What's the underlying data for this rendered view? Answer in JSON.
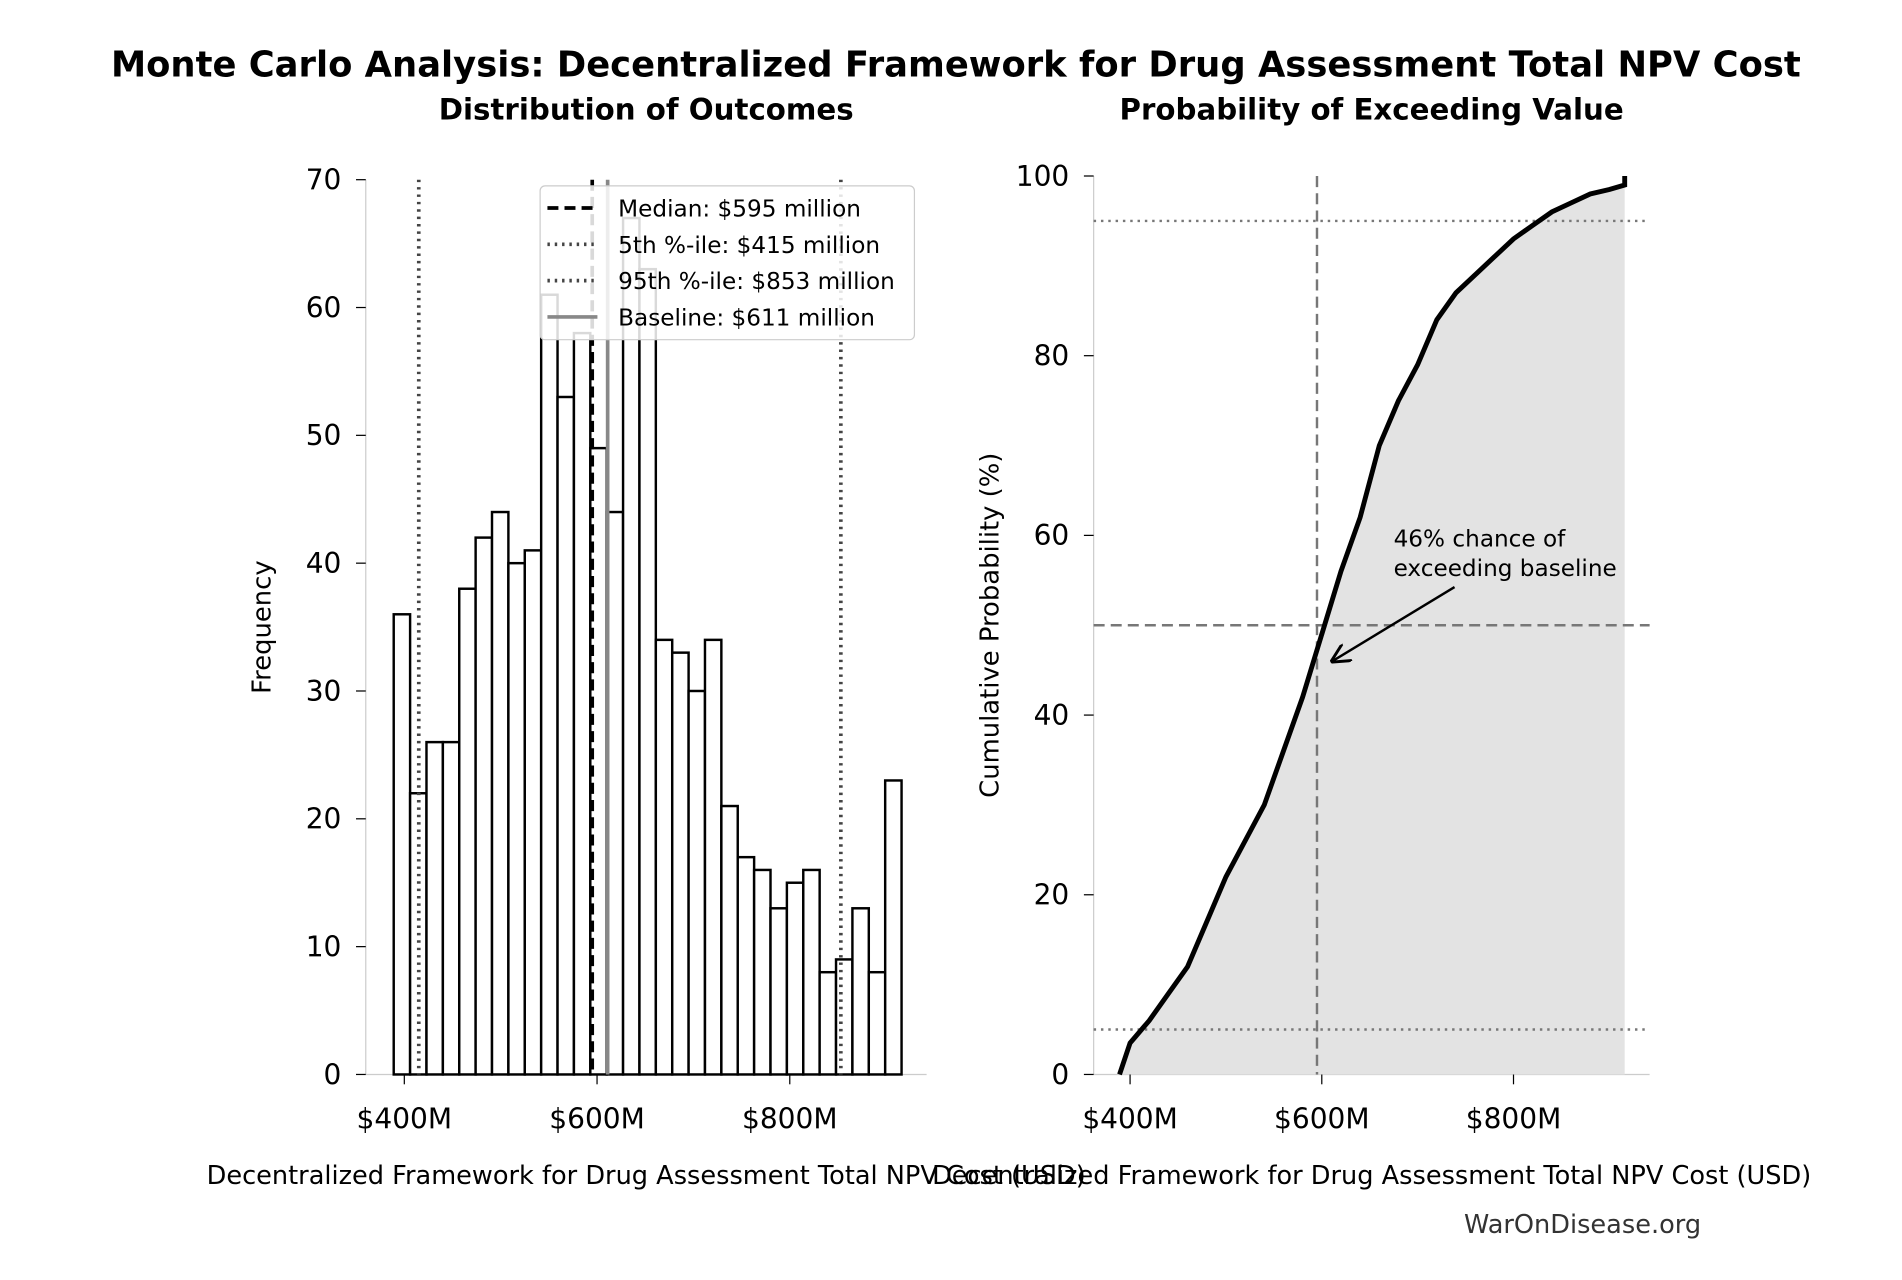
{
  "title": "Monte Carlo Analysis: Decentralized Framework for Drug Assessment Total NPV Cost",
  "footer": "WarOnDisease.org",
  "chart_data": [
    {
      "type": "histogram",
      "title": "Distribution of Outcomes",
      "x_label": "Decentralized Framework for Drug Assessment Total NPV Cost (USD)",
      "y_label": "Frequency",
      "bins": [
        389,
        406,
        423,
        440,
        457,
        474,
        491,
        508,
        525,
        542,
        559,
        576,
        593,
        610,
        627,
        644,
        661,
        678,
        695,
        712,
        729,
        746,
        763,
        780,
        797,
        814,
        831,
        848,
        865,
        882,
        899,
        916
      ],
      "values": [
        36,
        22,
        26,
        26,
        38,
        42,
        44,
        40,
        41,
        61,
        53,
        58,
        49,
        44,
        67,
        63,
        34,
        33,
        30,
        34,
        21,
        17,
        16,
        13,
        15,
        16,
        8,
        9,
        13,
        8,
        23
      ],
      "color": "#ffffff",
      "edge_color": "#000000",
      "xlim": [
        360,
        942
      ],
      "ylim": [
        0,
        70
      ],
      "xticks": [
        {
          "value": 400,
          "label": "$400M"
        },
        {
          "value": 600,
          "label": "$600M"
        },
        {
          "value": 800,
          "label": "$800M"
        }
      ],
      "yticks": [
        0,
        10,
        20,
        30,
        40,
        50,
        60,
        70
      ],
      "lines": [
        {
          "name": "Median: $595 million",
          "value": 595,
          "style": "dashed",
          "color": "#000000"
        },
        {
          "name": "5th %-ile: $415 million",
          "value": 415,
          "style": "dotted",
          "color": "#444444"
        },
        {
          "name": "95th %-ile: $853 million",
          "value": 853,
          "style": "dotted",
          "color": "#444444"
        },
        {
          "name": "Baseline: $611 million",
          "value": 611,
          "style": "solid",
          "color": "#888888"
        }
      ],
      "legend": "upper right"
    },
    {
      "type": "line",
      "title": "Probability of Exceeding Value",
      "x_label": "Decentralized Framework for Drug Assessment Total NPV Cost (USD)",
      "y_label": "Cumulative Probability (%)",
      "x": [
        389,
        400,
        420,
        440,
        460,
        480,
        500,
        520,
        540,
        560,
        580,
        600,
        620,
        640,
        660,
        680,
        700,
        720,
        740,
        760,
        780,
        800,
        820,
        840,
        860,
        880,
        900,
        916,
        916
      ],
      "values": [
        0,
        3.5,
        6,
        9,
        12,
        17,
        22,
        26,
        30,
        36,
        42,
        49,
        56,
        62,
        70,
        75,
        79,
        84,
        87,
        89,
        91,
        93,
        94.5,
        96,
        97,
        98,
        98.5,
        99,
        100
      ],
      "color": "#000000",
      "fill": "#e3e3e3",
      "xlim": [
        362,
        942
      ],
      "ylim": [
        0,
        100
      ],
      "xticks": [
        {
          "value": 400,
          "label": "$400M"
        },
        {
          "value": 600,
          "label": "$600M"
        },
        {
          "value": 800,
          "label": "$800M"
        }
      ],
      "yticks": [
        0,
        20,
        40,
        60,
        80,
        100
      ],
      "hlines": [
        {
          "value": 95,
          "style": "dotted"
        },
        {
          "value": 50,
          "style": "dashed"
        },
        {
          "value": 5,
          "style": "dotted"
        }
      ],
      "vlines": [
        {
          "value": 595,
          "style": "dashed"
        }
      ],
      "annotation": {
        "text": [
          "46% chance of",
          "exceeding baseline"
        ],
        "xy": [
          611,
          46
        ]
      }
    }
  ]
}
